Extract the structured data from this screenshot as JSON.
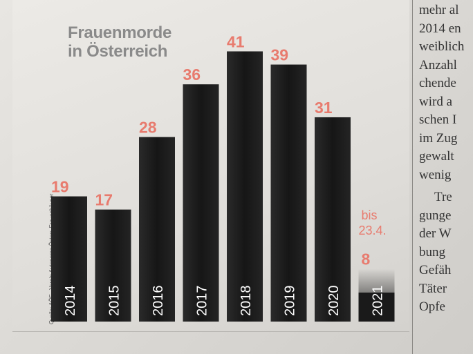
{
  "chart_data": {
    "type": "bar",
    "title": "Frauenmorde\nin Österreich",
    "categories": [
      "2014",
      "2015",
      "2016",
      "2017",
      "2018",
      "2019",
      "2020",
      "2021"
    ],
    "values": [
      19,
      17,
      28,
      36,
      41,
      39,
      31,
      8
    ],
    "value_labels": [
      "19",
      "17",
      "28",
      "36",
      "41",
      "39",
      "31",
      "8"
    ],
    "partial_note": "bis 23.4.",
    "source": "Quelle: AÖF –Verein Autonome Österr. Frauenhäuser",
    "ylim": [
      0,
      41
    ],
    "grid": false,
    "legend": "none",
    "colors": {
      "bar": "#1f1f1f",
      "value_label": "#e87b6e",
      "title": "#8a8a8a"
    }
  },
  "article": {
    "lines": [
      "mehr al",
      "2014 en",
      "weiblich",
      "Anzahl",
      "chende",
      "wird a",
      "schen I",
      "im Zug",
      "gewalt",
      "wenig",
      "Tre",
      "gunge",
      "der W",
      "bung",
      "Gefäh",
      "Täter",
      "Opfe"
    ]
  }
}
